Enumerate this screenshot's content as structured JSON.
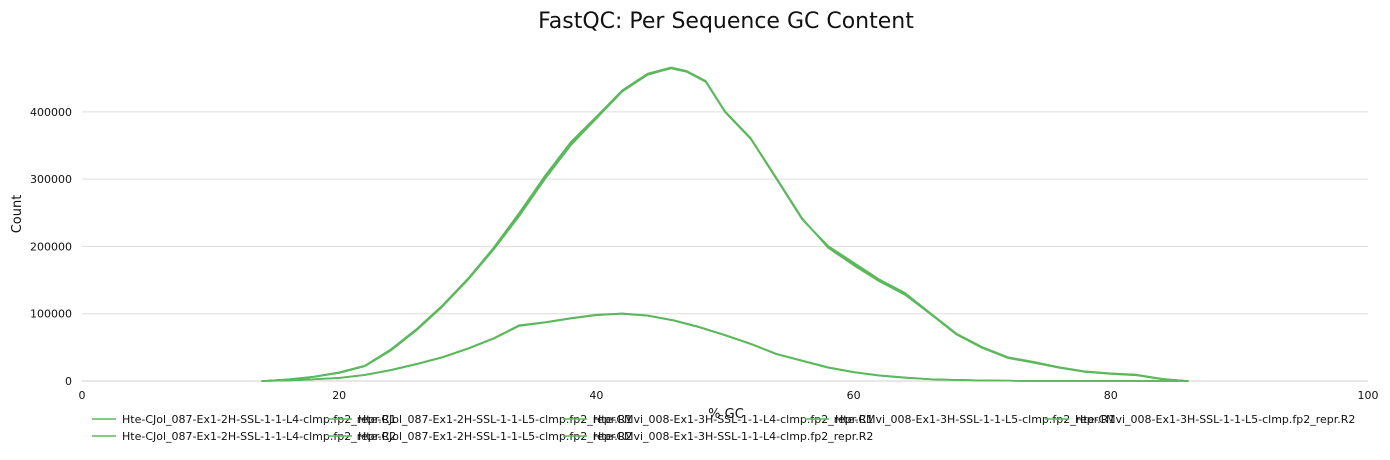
{
  "chart_data": {
    "type": "line",
    "title": "FastQC: Per Sequence GC Content",
    "xlabel": "% GC",
    "ylabel": "Count",
    "xlim": [
      0,
      100
    ],
    "ylim": [
      0,
      480000
    ],
    "x_ticks": [
      0,
      20,
      40,
      60,
      80,
      100
    ],
    "y_ticks": [
      0,
      100000,
      200000,
      300000,
      400000
    ],
    "grid": true,
    "legend_position": "bottom",
    "line_color": "#5cb85c",
    "series": [
      {
        "name": "Hte-CJol_087-Ex1-2H-SSL-1-1-L4-clmp.fp2_repr.R1",
        "x": [
          14,
          16,
          18,
          20,
          22,
          24,
          26,
          28,
          30,
          32,
          34,
          36,
          38,
          40,
          42,
          44,
          45.8,
          47,
          48.5,
          50,
          52,
          54,
          56,
          58,
          60,
          62,
          64,
          66,
          68,
          70,
          72,
          74,
          76,
          78,
          80,
          82,
          84,
          86
        ],
        "values": [
          0,
          2000,
          6000,
          12000,
          22000,
          45000,
          75000,
          110000,
          150000,
          195000,
          245000,
          300000,
          350000,
          390000,
          430000,
          455000,
          465000,
          460000,
          445000,
          400000,
          360000,
          300000,
          240000,
          200000,
          175000,
          150000,
          130000,
          100000,
          70000,
          50000,
          35000,
          28000,
          20000,
          14000,
          11000,
          9000,
          3000,
          0
        ]
      },
      {
        "name": "Hte-CJol_087-Ex1-2H-SSL-1-1-L4-clmp.fp2_repr.R2",
        "x": [
          14,
          16,
          18,
          20,
          22,
          24,
          26,
          28,
          30,
          32,
          34,
          36,
          38,
          40,
          42,
          44,
          45.8,
          47,
          48.5,
          50,
          52,
          54,
          56,
          58,
          60,
          62,
          64,
          66,
          68,
          70,
          72,
          74,
          76,
          78,
          80,
          82,
          84,
          86
        ],
        "values": [
          0,
          2500,
          6500,
          13000,
          23000,
          47000,
          77000,
          112000,
          152000,
          198000,
          250000,
          305000,
          355000,
          393000,
          432000,
          457000,
          466000,
          461000,
          446000,
          401000,
          361000,
          302000,
          242000,
          198000,
          172000,
          148000,
          128000,
          99000,
          69000,
          49000,
          34000,
          27000,
          19500,
          13500,
          10500,
          8500,
          2500,
          0
        ]
      },
      {
        "name": "Hte-CJol_087-Ex1-2H-SSL-1-1-L5-clmp.fp2_repr.R1",
        "x": [
          14,
          16,
          18,
          20,
          22,
          24,
          26,
          28,
          30,
          32,
          34,
          36,
          38,
          40,
          42,
          44,
          46,
          48,
          50,
          52,
          54,
          56,
          58,
          60,
          62,
          64,
          66,
          68,
          70,
          72,
          74,
          76,
          78,
          80,
          82,
          84,
          86
        ],
        "values": [
          0,
          700,
          2500,
          4500,
          9000,
          16000,
          25000,
          35000,
          48000,
          63000,
          82000,
          87000,
          93000,
          98000,
          100000,
          97000,
          90000,
          80000,
          68000,
          55000,
          40000,
          30000,
          20000,
          13000,
          8000,
          5000,
          2500,
          1500,
          800,
          400,
          0,
          0,
          0,
          0,
          0,
          0,
          0
        ]
      },
      {
        "name": "Hte-CJol_087-Ex1-2H-SSL-1-1-L5-clmp.fp2_repr.R2",
        "x": [
          14,
          16,
          18,
          20,
          22,
          24,
          26,
          28,
          30,
          32,
          34,
          36,
          38,
          40,
          42,
          44,
          46,
          48,
          50,
          52,
          54,
          56,
          58,
          60,
          62,
          64,
          66,
          68,
          70,
          72,
          74,
          76,
          78,
          80,
          82,
          84,
          86
        ],
        "values": [
          0,
          800,
          2700,
          4800,
          9300,
          16500,
          25500,
          35500,
          48500,
          63500,
          83000,
          87500,
          93500,
          98500,
          100500,
          97500,
          90500,
          80500,
          68500,
          55500,
          40500,
          30500,
          20500,
          13500,
          8500,
          5300,
          2800,
          1700,
          900,
          450,
          0,
          0,
          0,
          0,
          0,
          0,
          0
        ]
      },
      {
        "name": "Hte-CMvi_008-Ex1-3H-SSL-1-1-L4-clmp.fp2_repr.R1",
        "x": [
          14,
          16,
          18,
          20,
          22,
          24,
          26,
          28,
          30,
          32,
          34,
          36,
          38,
          40,
          42,
          44,
          46,
          48,
          50,
          52,
          54,
          56,
          58,
          60,
          62,
          64,
          66,
          68,
          70,
          72,
          74,
          76,
          78,
          80,
          82,
          84,
          86
        ],
        "values": [
          0,
          650,
          2400,
          4400,
          8800,
          15800,
          24800,
          34800,
          47800,
          62800,
          81800,
          86800,
          92800,
          97800,
          99800,
          96800,
          89800,
          79800,
          67800,
          54800,
          39800,
          29800,
          19800,
          12800,
          7800,
          4800,
          2400,
          1400,
          700,
          350,
          0,
          0,
          0,
          0,
          0,
          0,
          0
        ]
      },
      {
        "name": "Hte-CMvi_008-Ex1-3H-SSL-1-1-L4-clmp.fp2_repr.R2",
        "x": [
          14,
          16,
          18,
          20,
          22,
          24,
          26,
          28,
          30,
          32,
          34,
          36,
          38,
          40,
          42,
          44,
          46,
          48,
          50,
          52,
          54,
          56,
          58,
          60,
          62,
          64,
          66,
          68,
          70,
          72,
          74,
          76,
          78,
          80,
          82,
          84,
          86
        ],
        "values": [
          0,
          750,
          2600,
          4600,
          9100,
          16200,
          25200,
          35200,
          48200,
          63200,
          82300,
          87200,
          93200,
          98200,
          100200,
          97200,
          90200,
          80200,
          68200,
          55200,
          40200,
          30200,
          20200,
          13200,
          8200,
          5100,
          2600,
          1600,
          850,
          420,
          0,
          0,
          0,
          0,
          0,
          0,
          0
        ]
      },
      {
        "name": "Hte-CMvi_008-Ex1-3H-SSL-1-1-L5-clmp.fp2_repr.R1",
        "x": [
          14,
          16,
          18,
          20,
          22,
          24,
          26,
          28,
          30,
          32,
          34,
          36,
          38,
          40,
          42,
          44,
          45.8,
          47,
          48.5,
          50,
          52,
          54,
          56,
          58,
          60,
          62,
          64,
          66,
          68,
          70,
          72,
          74,
          76,
          78,
          80,
          82,
          84,
          86
        ],
        "values": [
          0,
          2200,
          6200,
          12500,
          22500,
          46000,
          76000,
          111000,
          151000,
          196000,
          247000,
          302000,
          352000,
          391000,
          431000,
          456000,
          465500,
          460500,
          445500,
          400500,
          360500,
          301000,
          241000,
          199000,
          173500,
          149000,
          129000,
          99500,
          69500,
          49500,
          34500,
          27500,
          19700,
          13700,
          10700,
          8700,
          2700,
          0
        ]
      },
      {
        "name": "Hte-CMvi_008-Ex1-3H-SSL-1-1-L5-clmp.fp2_repr.R2",
        "x": [
          14,
          16,
          18,
          20,
          22,
          24,
          26,
          28,
          30,
          32,
          34,
          36,
          38,
          40,
          42,
          44,
          45.8,
          47,
          48.5,
          50,
          52,
          54,
          56,
          58,
          60,
          62,
          64,
          66,
          68,
          70,
          72,
          74,
          76,
          78,
          80,
          82,
          84,
          86
        ],
        "values": [
          0,
          2100,
          6100,
          12200,
          22200,
          45500,
          75500,
          110500,
          150500,
          195500,
          246000,
          301000,
          351000,
          390500,
          430500,
          455500,
          464500,
          459500,
          444500,
          399500,
          359500,
          300500,
          240500,
          201000,
          176000,
          151000,
          131000,
          100500,
          70500,
          50500,
          35500,
          28500,
          20500,
          14500,
          11500,
          9500,
          3200,
          0
        ]
      }
    ]
  }
}
